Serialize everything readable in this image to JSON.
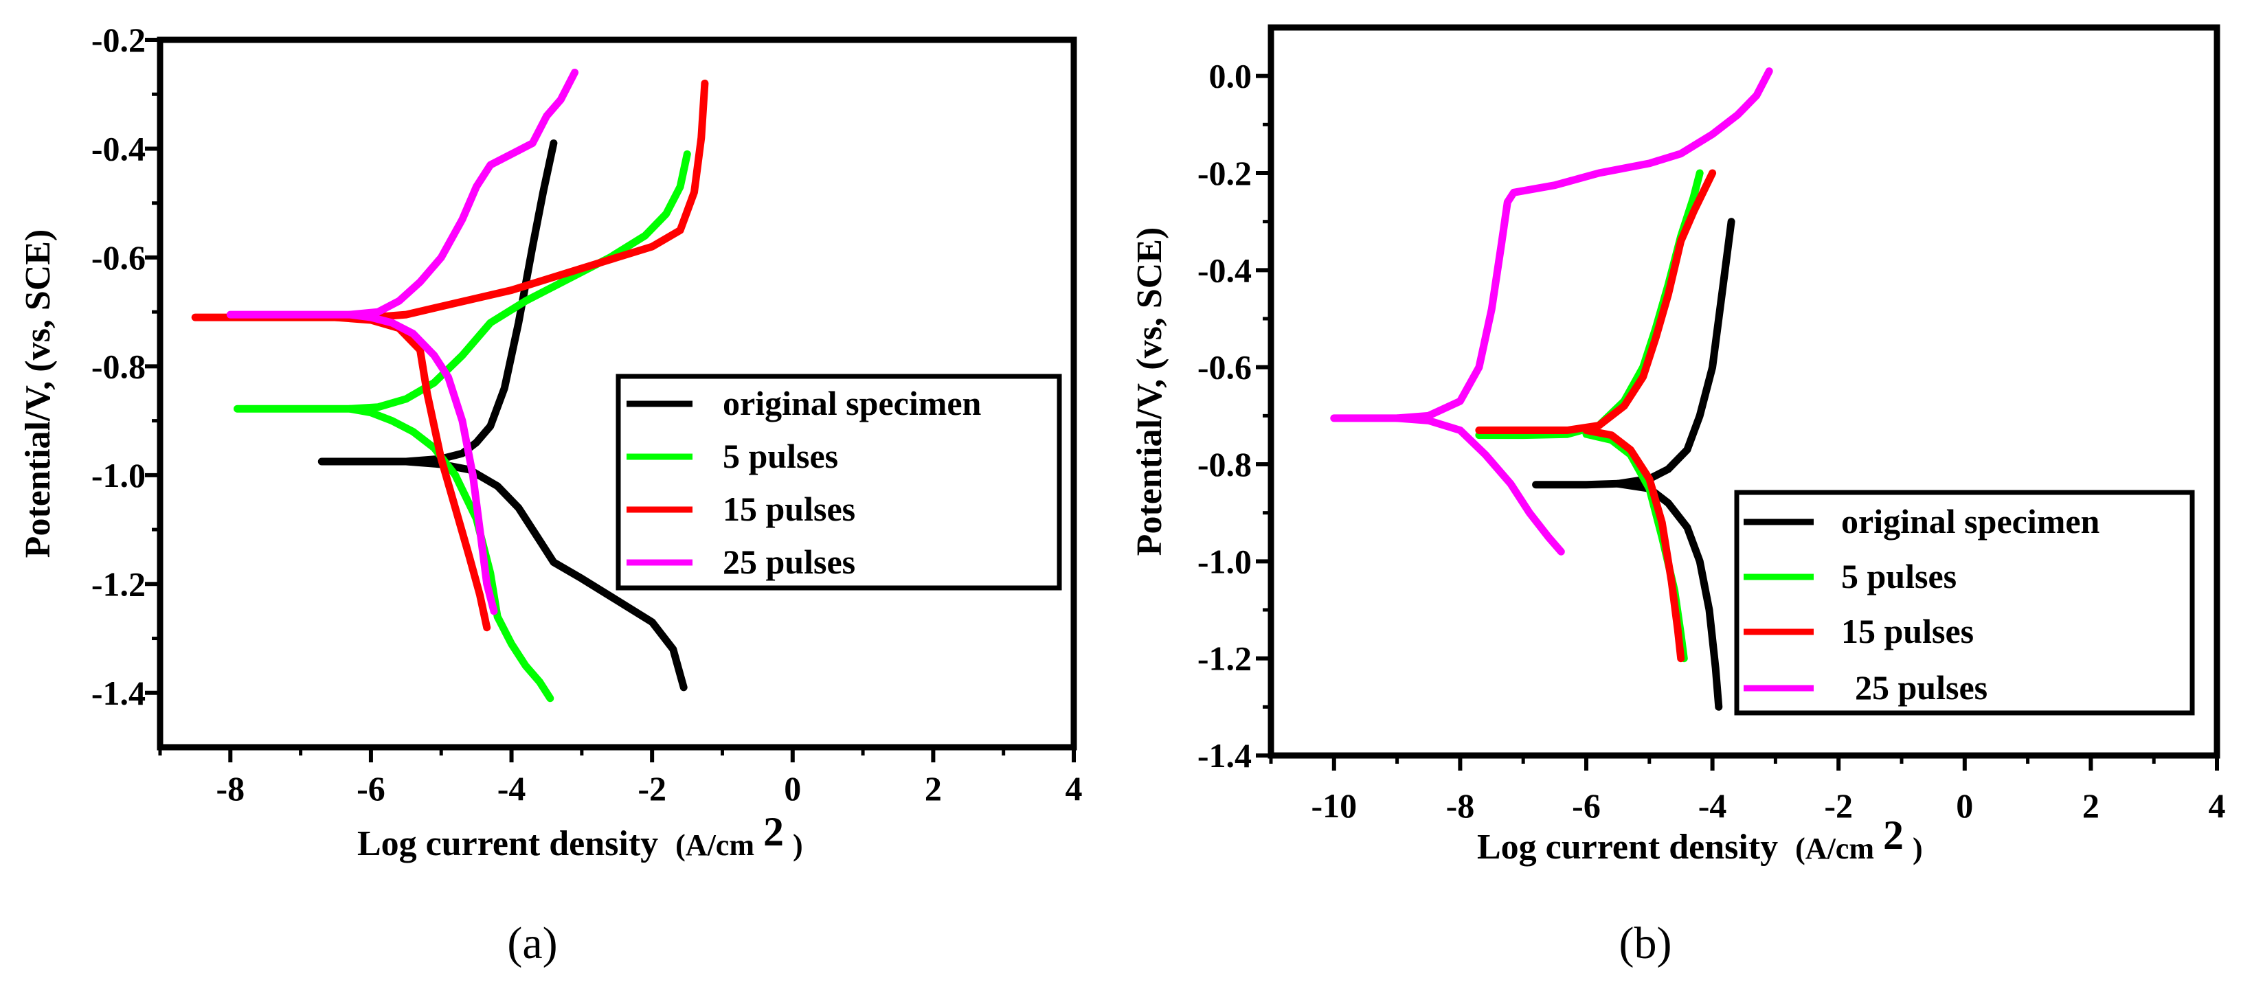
{
  "chart_data": [
    {
      "type": "line",
      "panel_label": "(a)",
      "xlabel": "Log current density",
      "xlabel_unit": "(A/cm",
      "xlabel_sup": "2",
      "xlabel_close": ")",
      "ylabel": "Potential/V, (vs, SCE)",
      "xlim": [
        -9,
        4
      ],
      "ylim": [
        -1.5,
        -0.2
      ],
      "xticks": [
        "-8",
        "-6",
        "-4",
        "-2",
        "0",
        "2",
        "4"
      ],
      "xtick_values": [
        -8,
        -6,
        -4,
        -2,
        0,
        2,
        4
      ],
      "yticks": [
        "-0.2",
        "-0.4",
        "-0.6",
        "-0.8",
        "-1.0",
        "-1.2",
        "-1.4"
      ],
      "ytick_values": [
        -0.2,
        -0.4,
        -0.6,
        -0.8,
        -1.0,
        -1.2,
        -1.4
      ],
      "legend_position": "center-right",
      "series": [
        {
          "name": "original specimen",
          "color": "#000000",
          "x": [
            -6.7,
            -6.0,
            -5.5,
            -5.0,
            -4.7,
            -4.5,
            -4.3,
            -4.1,
            -3.9,
            -3.7,
            -3.55,
            -3.4
          ],
          "y": [
            -0.975,
            -0.975,
            -0.975,
            -0.97,
            -0.96,
            -0.94,
            -0.91,
            -0.84,
            -0.72,
            -0.58,
            -0.48,
            -0.39
          ],
          "x2": [
            -5.5,
            -5.0,
            -4.6,
            -4.2,
            -3.9,
            -3.6,
            -3.4,
            -3.0,
            -2.5,
            -2.0,
            -1.7,
            -1.55
          ],
          "y2": [
            -0.975,
            -0.98,
            -0.99,
            -1.02,
            -1.06,
            -1.12,
            -1.16,
            -1.19,
            -1.23,
            -1.27,
            -1.32,
            -1.39
          ]
        },
        {
          "name": "5 pulses",
          "color": "#00ff00",
          "x": [
            -7.9,
            -7.0,
            -6.3,
            -5.9,
            -5.5,
            -5.1,
            -4.7,
            -4.3,
            -3.8,
            -3.2,
            -2.6,
            -2.1,
            -1.8,
            -1.6,
            -1.5
          ],
          "y": [
            -0.878,
            -0.878,
            -0.878,
            -0.875,
            -0.86,
            -0.83,
            -0.78,
            -0.72,
            -0.68,
            -0.64,
            -0.6,
            -0.56,
            -0.52,
            -0.47,
            -0.41
          ],
          "x2": [
            -6.3,
            -6.0,
            -5.7,
            -5.4,
            -5.1,
            -4.8,
            -4.5,
            -4.3,
            -4.2,
            -4.0,
            -3.8,
            -3.6,
            -3.45
          ],
          "y2": [
            -0.878,
            -0.885,
            -0.9,
            -0.92,
            -0.95,
            -1.0,
            -1.08,
            -1.18,
            -1.26,
            -1.31,
            -1.35,
            -1.38,
            -1.41
          ]
        },
        {
          "name": "15 pulses",
          "color": "#ff0000",
          "x": [
            -8.5,
            -7.5,
            -6.5,
            -6.0,
            -5.5,
            -5.0,
            -4.5,
            -4.0,
            -3.5,
            -3.0,
            -2.5,
            -2.0,
            -1.6,
            -1.4,
            -1.3,
            -1.25
          ],
          "y": [
            -0.71,
            -0.71,
            -0.71,
            -0.71,
            -0.705,
            -0.69,
            -0.675,
            -0.66,
            -0.64,
            -0.62,
            -0.6,
            -0.58,
            -0.55,
            -0.48,
            -0.38,
            -0.28
          ],
          "x2": [
            -6.5,
            -6.0,
            -5.6,
            -5.3,
            -5.2,
            -5.0,
            -4.8,
            -4.6,
            -4.45,
            -4.35
          ],
          "y2": [
            -0.71,
            -0.715,
            -0.73,
            -0.77,
            -0.85,
            -0.97,
            -1.06,
            -1.15,
            -1.22,
            -1.28
          ]
        },
        {
          "name": "25 pulses",
          "color": "#ff00ff",
          "x": [
            -8.0,
            -7.0,
            -6.3,
            -5.9,
            -5.6,
            -5.3,
            -5.0,
            -4.7,
            -4.5,
            -4.3,
            -4.0,
            -3.7,
            -3.5,
            -3.3,
            -3.1
          ],
          "y": [
            -0.705,
            -0.705,
            -0.705,
            -0.7,
            -0.68,
            -0.645,
            -0.6,
            -0.53,
            -0.47,
            -0.43,
            -0.41,
            -0.39,
            -0.34,
            -0.31,
            -0.26
          ],
          "x2": [
            -6.3,
            -6.0,
            -5.7,
            -5.4,
            -5.1,
            -4.9,
            -4.7,
            -4.55,
            -4.45,
            -4.35,
            -4.25
          ],
          "y2": [
            -0.705,
            -0.71,
            -0.72,
            -0.74,
            -0.78,
            -0.82,
            -0.9,
            -1.0,
            -1.1,
            -1.2,
            -1.25
          ]
        }
      ]
    },
    {
      "type": "line",
      "panel_label": "(b)",
      "xlabel": "Log current density",
      "xlabel_unit": "(A/cm",
      "xlabel_sup": "2",
      "xlabel_close": ")",
      "ylabel": "Potential/V, (vs, SCE)",
      "xlim": [
        -11,
        4
      ],
      "ylim": [
        -1.4,
        0.1
      ],
      "xticks": [
        "-10",
        "-8",
        "-6",
        "-4",
        "-2",
        "0",
        "2",
        "4"
      ],
      "xtick_values": [
        -10,
        -8,
        -6,
        -4,
        -2,
        0,
        2,
        4
      ],
      "yticks": [
        "0.0",
        "-0.2",
        "-0.4",
        "-0.6",
        "-0.8",
        "-1.0",
        "-1.2",
        "-1.4"
      ],
      "ytick_values": [
        0.0,
        -0.2,
        -0.4,
        -0.6,
        -0.8,
        -1.0,
        -1.2,
        -1.4
      ],
      "legend_position": "bottom-right",
      "series": [
        {
          "name": "original specimen",
          "color": "#000000",
          "x": [
            -6.8,
            -6.0,
            -5.5,
            -5.0,
            -4.7,
            -4.4,
            -4.2,
            -4.0,
            -3.9,
            -3.8,
            -3.7
          ],
          "y": [
            -0.842,
            -0.842,
            -0.84,
            -0.83,
            -0.81,
            -0.77,
            -0.7,
            -0.6,
            -0.5,
            -0.4,
            -0.3
          ],
          "x2": [
            -5.5,
            -5.0,
            -4.7,
            -4.4,
            -4.2,
            -4.05,
            -3.95,
            -3.9
          ],
          "y2": [
            -0.84,
            -0.85,
            -0.88,
            -0.93,
            -1.0,
            -1.1,
            -1.22,
            -1.3
          ]
        },
        {
          "name": "5 pulses",
          "color": "#00ff00",
          "x": [
            -7.7,
            -7.0,
            -6.3,
            -5.8,
            -5.4,
            -5.1,
            -4.9,
            -4.7,
            -4.5,
            -4.3,
            -4.2
          ],
          "y": [
            -0.74,
            -0.74,
            -0.738,
            -0.72,
            -0.67,
            -0.6,
            -0.52,
            -0.43,
            -0.33,
            -0.25,
            -0.2
          ],
          "x2": [
            -6.0,
            -5.6,
            -5.3,
            -5.0,
            -4.8,
            -4.6,
            -4.5,
            -4.45
          ],
          "y2": [
            -0.738,
            -0.75,
            -0.78,
            -0.85,
            -0.95,
            -1.06,
            -1.15,
            -1.2
          ]
        },
        {
          "name": "15 pulses",
          "color": "#ff0000",
          "x": [
            -7.7,
            -7.0,
            -6.3,
            -5.8,
            -5.4,
            -5.1,
            -4.9,
            -4.7,
            -4.5,
            -4.3,
            -4.15,
            -4.0
          ],
          "y": [
            -0.73,
            -0.73,
            -0.73,
            -0.72,
            -0.68,
            -0.62,
            -0.54,
            -0.45,
            -0.34,
            -0.28,
            -0.24,
            -0.2
          ],
          "x2": [
            -6.0,
            -5.6,
            -5.3,
            -5.0,
            -4.8,
            -4.65,
            -4.55,
            -4.5
          ],
          "y2": [
            -0.73,
            -0.74,
            -0.77,
            -0.83,
            -0.92,
            -1.04,
            -1.14,
            -1.2
          ]
        },
        {
          "name": "25 pulses",
          "color": "#ff00ff",
          "x": [
            -10.0,
            -9.0,
            -8.5,
            -8.0,
            -7.7,
            -7.5,
            -7.35,
            -7.25,
            -7.15,
            -6.5,
            -5.8,
            -5.0,
            -4.5,
            -4.0,
            -3.6,
            -3.3,
            -3.1
          ],
          "y": [
            -0.705,
            -0.705,
            -0.7,
            -0.67,
            -0.6,
            -0.48,
            -0.35,
            -0.26,
            -0.24,
            -0.225,
            -0.2,
            -0.18,
            -0.16,
            -0.12,
            -0.08,
            -0.04,
            0.01
          ],
          "x2": [
            -9.0,
            -8.5,
            -8.0,
            -7.6,
            -7.2,
            -6.9,
            -6.6,
            -6.4
          ],
          "y2": [
            -0.705,
            -0.71,
            -0.73,
            -0.78,
            -0.84,
            -0.9,
            -0.95,
            -0.98
          ]
        }
      ]
    }
  ]
}
